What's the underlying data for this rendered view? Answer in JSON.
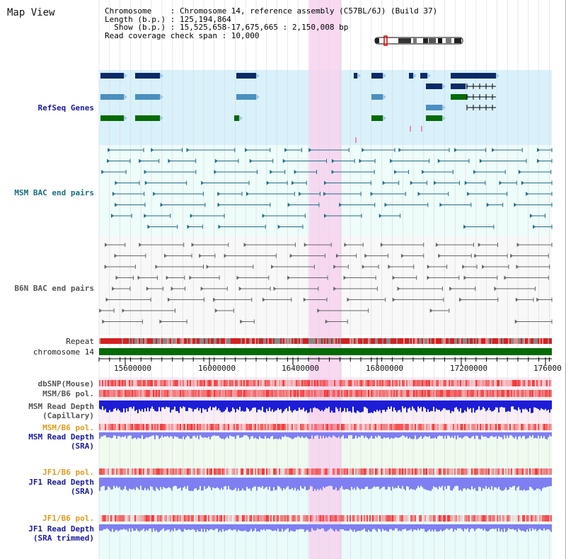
{
  "title": "Map View",
  "info": {
    "chromosome_line": "Chromosome    : Chromosome 14, reference assembly (C57BL/6J) (Build 37)",
    "length_line": "Length (b.p.) : 125,194,864",
    "show_line": "  Show (b.p.) : 15,525,658-17,675,665 : 2,150,008 bp",
    "read_cov_line": "Read coverage check span : 10,000"
  },
  "tracks": {
    "refseq": "RefSeq Genes",
    "msm_bac": "MSM BAC end pairs",
    "b6n_bac": "B6N BAC end pairs",
    "repeat": "Repeat",
    "chromosome": "chromosome 14",
    "dbsnp": "dbSNP(Mouse)",
    "msm_b6_pol": "MSM/B6 pol.",
    "msm_read_depth_cap_1": "MSM Read Depth",
    "msm_read_depth_cap_2": "(Capillary)",
    "msm_b6_pol2": "MSM/B6 pol.",
    "msm_read_depth_sra_1": "MSM Read Depth",
    "msm_read_depth_sra_2": "(SRA)",
    "jf1_b6_pol": "JF1/B6 pol.",
    "jf1_read_depth_sra_1": "JF1 Read Depth",
    "jf1_read_depth_sra_2": "(SRA)",
    "jf1_b6_pol2": "JF1/B6 pol.",
    "jf1_read_depth_trim_1": "JF1 Read Depth",
    "jf1_read_depth_trim_2": "(SRA trimmed)"
  },
  "axis": {
    "ticks": [
      "15600000",
      "16000000",
      "16400000",
      "16800000",
      "17200000",
      "176000"
    ]
  },
  "colors": {
    "refseq_bg": "#d9f1fb",
    "bac_bg": "#eefcfa",
    "highlight": "#f7d2ee",
    "chromosome": "#066b06",
    "gene_dark": "#0c2a66",
    "gene_mid": "#4a8fbf",
    "gene_green": "#066b06",
    "bac_msm": "#1e6f86",
    "bac_b6n": "#666666",
    "depth_blue": "#1d1dd6",
    "depth_light": "#7f7ff2",
    "pol_red": "#f23535"
  }
}
